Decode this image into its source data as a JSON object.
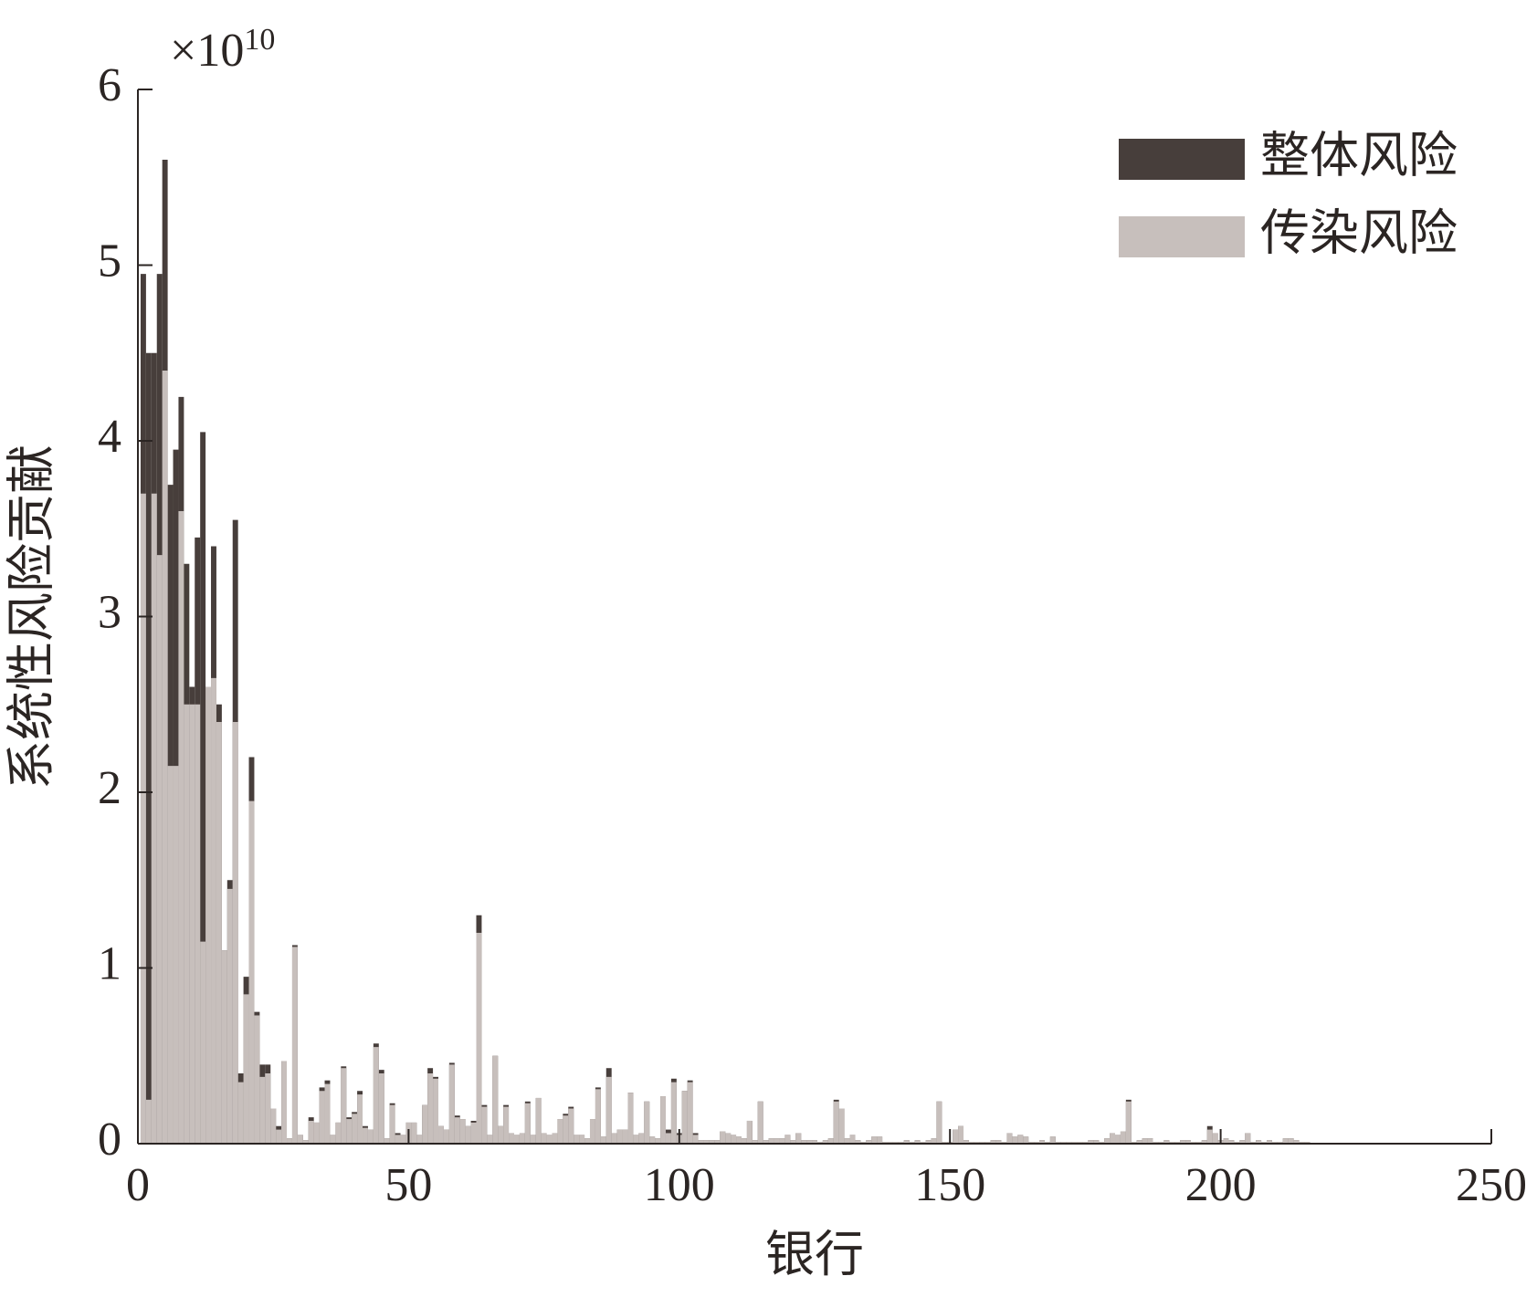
{
  "chart_data": {
    "type": "bar",
    "overlay": true,
    "y_label": "系统性风险贡献",
    "x_label": "银行",
    "y_multiplier": {
      "base": "×10",
      "exponent": "10"
    },
    "xlim": [
      0,
      250
    ],
    "xticks": [
      0,
      50,
      100,
      150,
      200,
      250
    ],
    "ylim": [
      0,
      6
    ],
    "yticks": [
      0,
      1,
      2,
      3,
      4,
      5,
      6
    ],
    "legend": "upper right",
    "x": [
      1,
      2,
      3,
      4,
      5,
      6,
      7,
      8,
      9,
      10,
      11,
      12,
      13,
      14,
      15,
      16,
      17,
      18,
      19,
      20,
      21,
      22,
      23,
      24,
      25,
      26,
      27,
      28,
      29,
      30,
      31,
      32,
      33,
      34,
      35,
      36,
      37,
      38,
      39,
      40,
      41,
      42,
      43,
      44,
      45,
      46,
      47,
      48,
      49,
      50,
      51,
      52,
      53,
      54,
      55,
      56,
      57,
      58,
      59,
      60,
      61,
      62,
      63,
      64,
      65,
      66,
      67,
      68,
      69,
      70,
      71,
      72,
      73,
      74,
      75,
      76,
      77,
      78,
      79,
      80,
      81,
      82,
      83,
      84,
      85,
      86,
      87,
      88,
      89,
      90,
      91,
      92,
      93,
      94,
      95,
      96,
      97,
      98,
      99,
      100,
      101,
      102,
      103,
      104,
      105,
      106,
      107,
      108,
      109,
      110,
      111,
      112,
      113,
      114,
      115,
      116,
      117,
      118,
      119,
      120,
      121,
      122,
      123,
      124,
      125,
      126,
      127,
      128,
      129,
      130,
      131,
      132,
      133,
      134,
      135,
      136,
      137,
      138,
      139,
      140,
      141,
      142,
      143,
      144,
      145,
      146,
      147,
      148,
      149,
      150,
      151,
      152,
      153,
      154,
      155,
      156,
      157,
      158,
      159,
      160,
      161,
      162,
      163,
      164,
      165,
      166,
      167,
      168,
      169,
      170,
      171,
      172,
      173,
      174,
      175,
      176,
      177,
      178,
      179,
      180,
      181,
      182,
      183,
      184,
      185,
      186,
      187,
      188,
      189,
      190,
      191,
      192,
      193,
      194,
      195,
      196,
      197,
      198,
      199,
      200,
      201,
      202,
      203,
      204,
      205,
      206,
      207,
      208,
      209,
      210,
      211,
      212,
      213,
      214,
      215,
      216
    ],
    "series": [
      {
        "name": "整体风险",
        "color": "#473e3b",
        "values": [
          4.95,
          4.5,
          4.5,
          4.95,
          5.6,
          3.75,
          3.95,
          4.25,
          3.3,
          2.6,
          3.45,
          4.05,
          2.6,
          3.4,
          2.5,
          1.1,
          1.5,
          3.55,
          0.4,
          0.95,
          2.2,
          0.75,
          0.45,
          0.45,
          0.2,
          0.1,
          0.47,
          0.03,
          1.13,
          0.05,
          0.02,
          0.15,
          0.12,
          0.32,
          0.36,
          0.05,
          0.12,
          0.44,
          0.15,
          0.18,
          0.3,
          0.1,
          0.08,
          0.57,
          0.42,
          0.03,
          0.23,
          0.06,
          0.05,
          0.12,
          0.12,
          0.05,
          0.22,
          0.43,
          0.38,
          0.1,
          0.08,
          0.46,
          0.16,
          0.14,
          0.1,
          0.13,
          1.3,
          0.22,
          0.05,
          0.5,
          0.1,
          0.22,
          0.06,
          0.05,
          0.06,
          0.24,
          0.05,
          0.26,
          0.06,
          0.05,
          0.06,
          0.14,
          0.17,
          0.21,
          0.05,
          0.05,
          0.03,
          0.14,
          0.32,
          0.04,
          0.43,
          0.06,
          0.08,
          0.08,
          0.29,
          0.05,
          0.06,
          0.24,
          0.04,
          0.03,
          0.27,
          0.08,
          0.37,
          0.06,
          0.3,
          0.36,
          0.06,
          0.02,
          0.02,
          0.02,
          0.02,
          0.07,
          0.06,
          0.05,
          0.04,
          0.03,
          0.13,
          0.02,
          0.24,
          0.02,
          0.03,
          0.03,
          0.03,
          0.05,
          0.02,
          0.06,
          0.02,
          0.02,
          0.02,
          0.01,
          0.02,
          0.03,
          0.25,
          0.2,
          0.03,
          0.05,
          0.02,
          0.01,
          0.02,
          0.04,
          0.04,
          0.01,
          0.01,
          0.01,
          0.01,
          0.02,
          0.01,
          0.02,
          0.01,
          0.02,
          0.03,
          0.24,
          0.01,
          0.01,
          0.08,
          0.1,
          0.02,
          0.01,
          0.01,
          0.01,
          0.01,
          0.02,
          0.02,
          0.01,
          0.06,
          0.04,
          0.05,
          0.04,
          0.01,
          0.01,
          0.02,
          0.01,
          0.04,
          0.01,
          0.01,
          0.01,
          0.01,
          0.01,
          0.01,
          0.02,
          0.02,
          0.01,
          0.03,
          0.06,
          0.05,
          0.07,
          0.25,
          0.01,
          0.02,
          0.03,
          0.03,
          0.01,
          0.01,
          0.02,
          0.01,
          0.01,
          0.02,
          0.02,
          0.01,
          0.01,
          0.02,
          0.1,
          0.06,
          0.02,
          0.03,
          0.02,
          0.01,
          0.02,
          0.06,
          0.01,
          0.02,
          0.01,
          0.02,
          0.01,
          0.01,
          0.03,
          0.03,
          0.02,
          0.01,
          0.01
        ]
      },
      {
        "name": "传染风险",
        "color": "#c7bfbc",
        "values": [
          3.7,
          0.25,
          3.7,
          3.35,
          4.4,
          2.15,
          2.15,
          3.6,
          2.5,
          2.5,
          2.5,
          1.15,
          2.6,
          2.65,
          2.4,
          1.1,
          1.45,
          2.4,
          0.35,
          0.85,
          1.95,
          0.73,
          0.38,
          0.4,
          0.2,
          0.08,
          0.47,
          0.03,
          1.12,
          0.05,
          0.02,
          0.13,
          0.12,
          0.3,
          0.34,
          0.05,
          0.12,
          0.43,
          0.14,
          0.17,
          0.28,
          0.09,
          0.08,
          0.55,
          0.4,
          0.03,
          0.22,
          0.05,
          0.05,
          0.12,
          0.12,
          0.05,
          0.22,
          0.4,
          0.37,
          0.1,
          0.08,
          0.45,
          0.15,
          0.14,
          0.1,
          0.12,
          1.2,
          0.21,
          0.05,
          0.5,
          0.1,
          0.21,
          0.06,
          0.05,
          0.06,
          0.23,
          0.05,
          0.26,
          0.06,
          0.05,
          0.06,
          0.14,
          0.16,
          0.2,
          0.05,
          0.05,
          0.03,
          0.14,
          0.31,
          0.04,
          0.38,
          0.06,
          0.08,
          0.08,
          0.29,
          0.05,
          0.06,
          0.24,
          0.04,
          0.03,
          0.27,
          0.06,
          0.35,
          0.05,
          0.3,
          0.35,
          0.05,
          0.02,
          0.02,
          0.02,
          0.02,
          0.07,
          0.06,
          0.05,
          0.04,
          0.03,
          0.13,
          0.02,
          0.24,
          0.02,
          0.03,
          0.03,
          0.03,
          0.05,
          0.02,
          0.06,
          0.02,
          0.02,
          0.02,
          0.01,
          0.02,
          0.03,
          0.24,
          0.2,
          0.03,
          0.05,
          0.02,
          0.01,
          0.02,
          0.04,
          0.04,
          0.01,
          0.01,
          0.01,
          0.01,
          0.02,
          0.01,
          0.02,
          0.01,
          0.02,
          0.03,
          0.24,
          0.01,
          0.01,
          0.08,
          0.1,
          0.02,
          0.01,
          0.01,
          0.01,
          0.01,
          0.02,
          0.02,
          0.01,
          0.06,
          0.04,
          0.05,
          0.04,
          0.01,
          0.01,
          0.02,
          0.01,
          0.04,
          0.01,
          0.01,
          0.01,
          0.01,
          0.01,
          0.01,
          0.02,
          0.02,
          0.01,
          0.03,
          0.06,
          0.05,
          0.07,
          0.24,
          0.01,
          0.02,
          0.03,
          0.03,
          0.01,
          0.01,
          0.02,
          0.01,
          0.01,
          0.02,
          0.02,
          0.01,
          0.01,
          0.02,
          0.08,
          0.06,
          0.02,
          0.03,
          0.02,
          0.01,
          0.02,
          0.06,
          0.01,
          0.02,
          0.01,
          0.02,
          0.01,
          0.01,
          0.03,
          0.03,
          0.02,
          0.01,
          0.01
        ]
      }
    ]
  }
}
